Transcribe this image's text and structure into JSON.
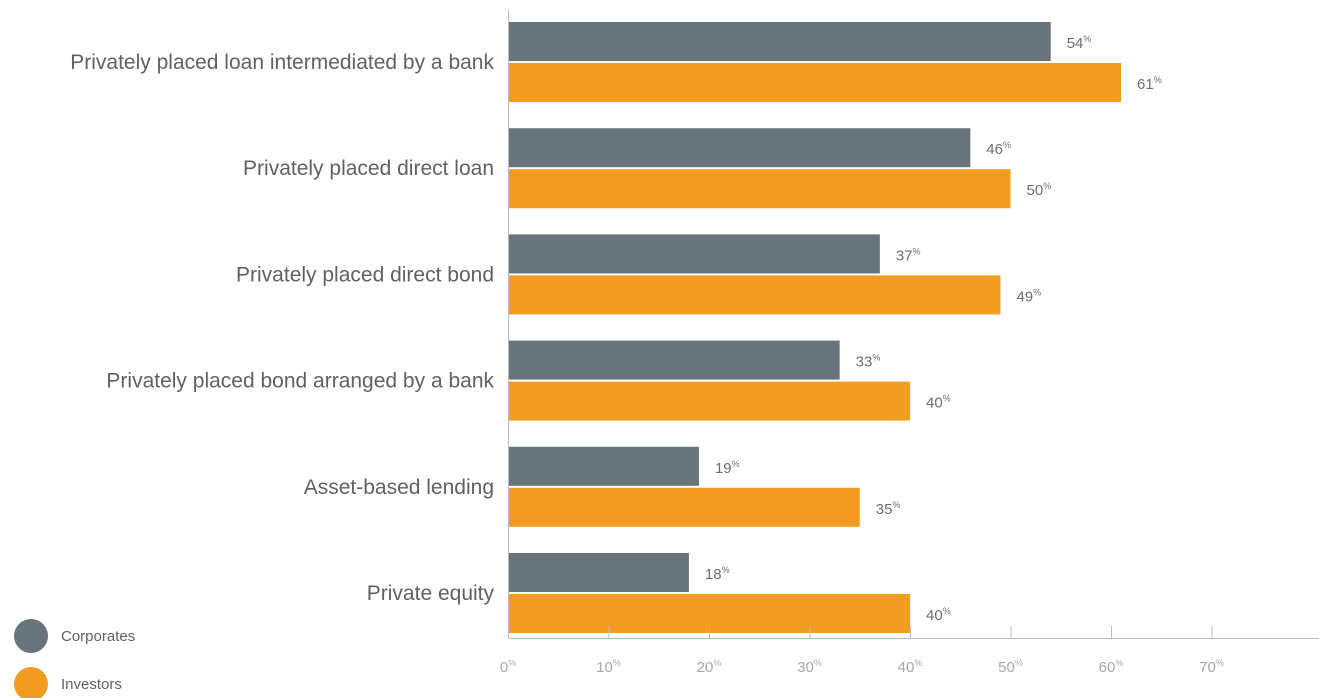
{
  "chart_data": {
    "type": "bar",
    "orientation": "horizontal",
    "categories": [
      "Privately placed loan intermediated by a bank",
      "Privately placed direct loan",
      "Privately placed direct bond",
      "Privately placed bond arranged by a bank",
      "Asset-based lending",
      "Private equity"
    ],
    "series": [
      {
        "name": "Corporates",
        "values": [
          54,
          46,
          37,
          33,
          19,
          18
        ],
        "color": "#68747b"
      },
      {
        "name": "Investors",
        "values": [
          61,
          50,
          49,
          40,
          35,
          40
        ],
        "color": "#f39c22"
      }
    ],
    "value_suffix": "%",
    "xlim": [
      0,
      80
    ],
    "x_ticks": [
      0,
      10,
      20,
      30,
      40,
      50,
      60,
      70
    ],
    "tick_suffix": "%",
    "grid": false,
    "legend_position": "bottom-left",
    "title": "",
    "xlabel": "",
    "ylabel": ""
  }
}
